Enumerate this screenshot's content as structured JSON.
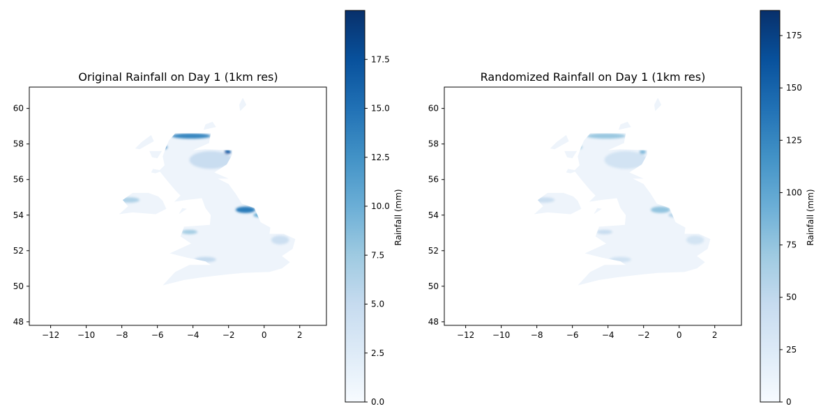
{
  "panels": [
    {
      "id": "original",
      "title": "Original Rainfall on Day 1 (1km res)",
      "x_ticks": [
        "−12",
        "−10",
        "−8",
        "−6",
        "−4",
        "−2",
        "0",
        "2"
      ],
      "y_ticks": [
        "48",
        "50",
        "52",
        "54",
        "56",
        "58",
        "60"
      ],
      "colorbar_label": "Rainfall (mm)",
      "colorbar_ticks": [
        "0.0",
        "2.5",
        "5.0",
        "7.5",
        "10.0",
        "12.5",
        "15.0",
        "17.5"
      ],
      "colorbar_range": [
        0,
        20
      ],
      "hotspot_intensity": 1.0
    },
    {
      "id": "randomized",
      "title": "Randomized Rainfall on Day 1 (1km res)",
      "x_ticks": [
        "−12",
        "−10",
        "−8",
        "−6",
        "−4",
        "−2",
        "0",
        "2"
      ],
      "y_ticks": [
        "48",
        "50",
        "52",
        "54",
        "56",
        "58",
        "60"
      ],
      "colorbar_label": "Rainfall (mm)",
      "colorbar_ticks": [
        "0",
        "25",
        "50",
        "75",
        "100",
        "125",
        "150",
        "175"
      ],
      "colorbar_range": [
        0,
        187
      ],
      "hotspot_intensity": 0.45
    }
  ],
  "map_extent": {
    "lon": [
      -13.2,
      3.5
    ],
    "lat": [
      47.8,
      61.2
    ]
  },
  "colormap": [
    "#f7fbff",
    "#deebf7",
    "#c6dbef",
    "#9ecae1",
    "#6baed6",
    "#4292c6",
    "#2171b5",
    "#08519c",
    "#08306b"
  ]
}
